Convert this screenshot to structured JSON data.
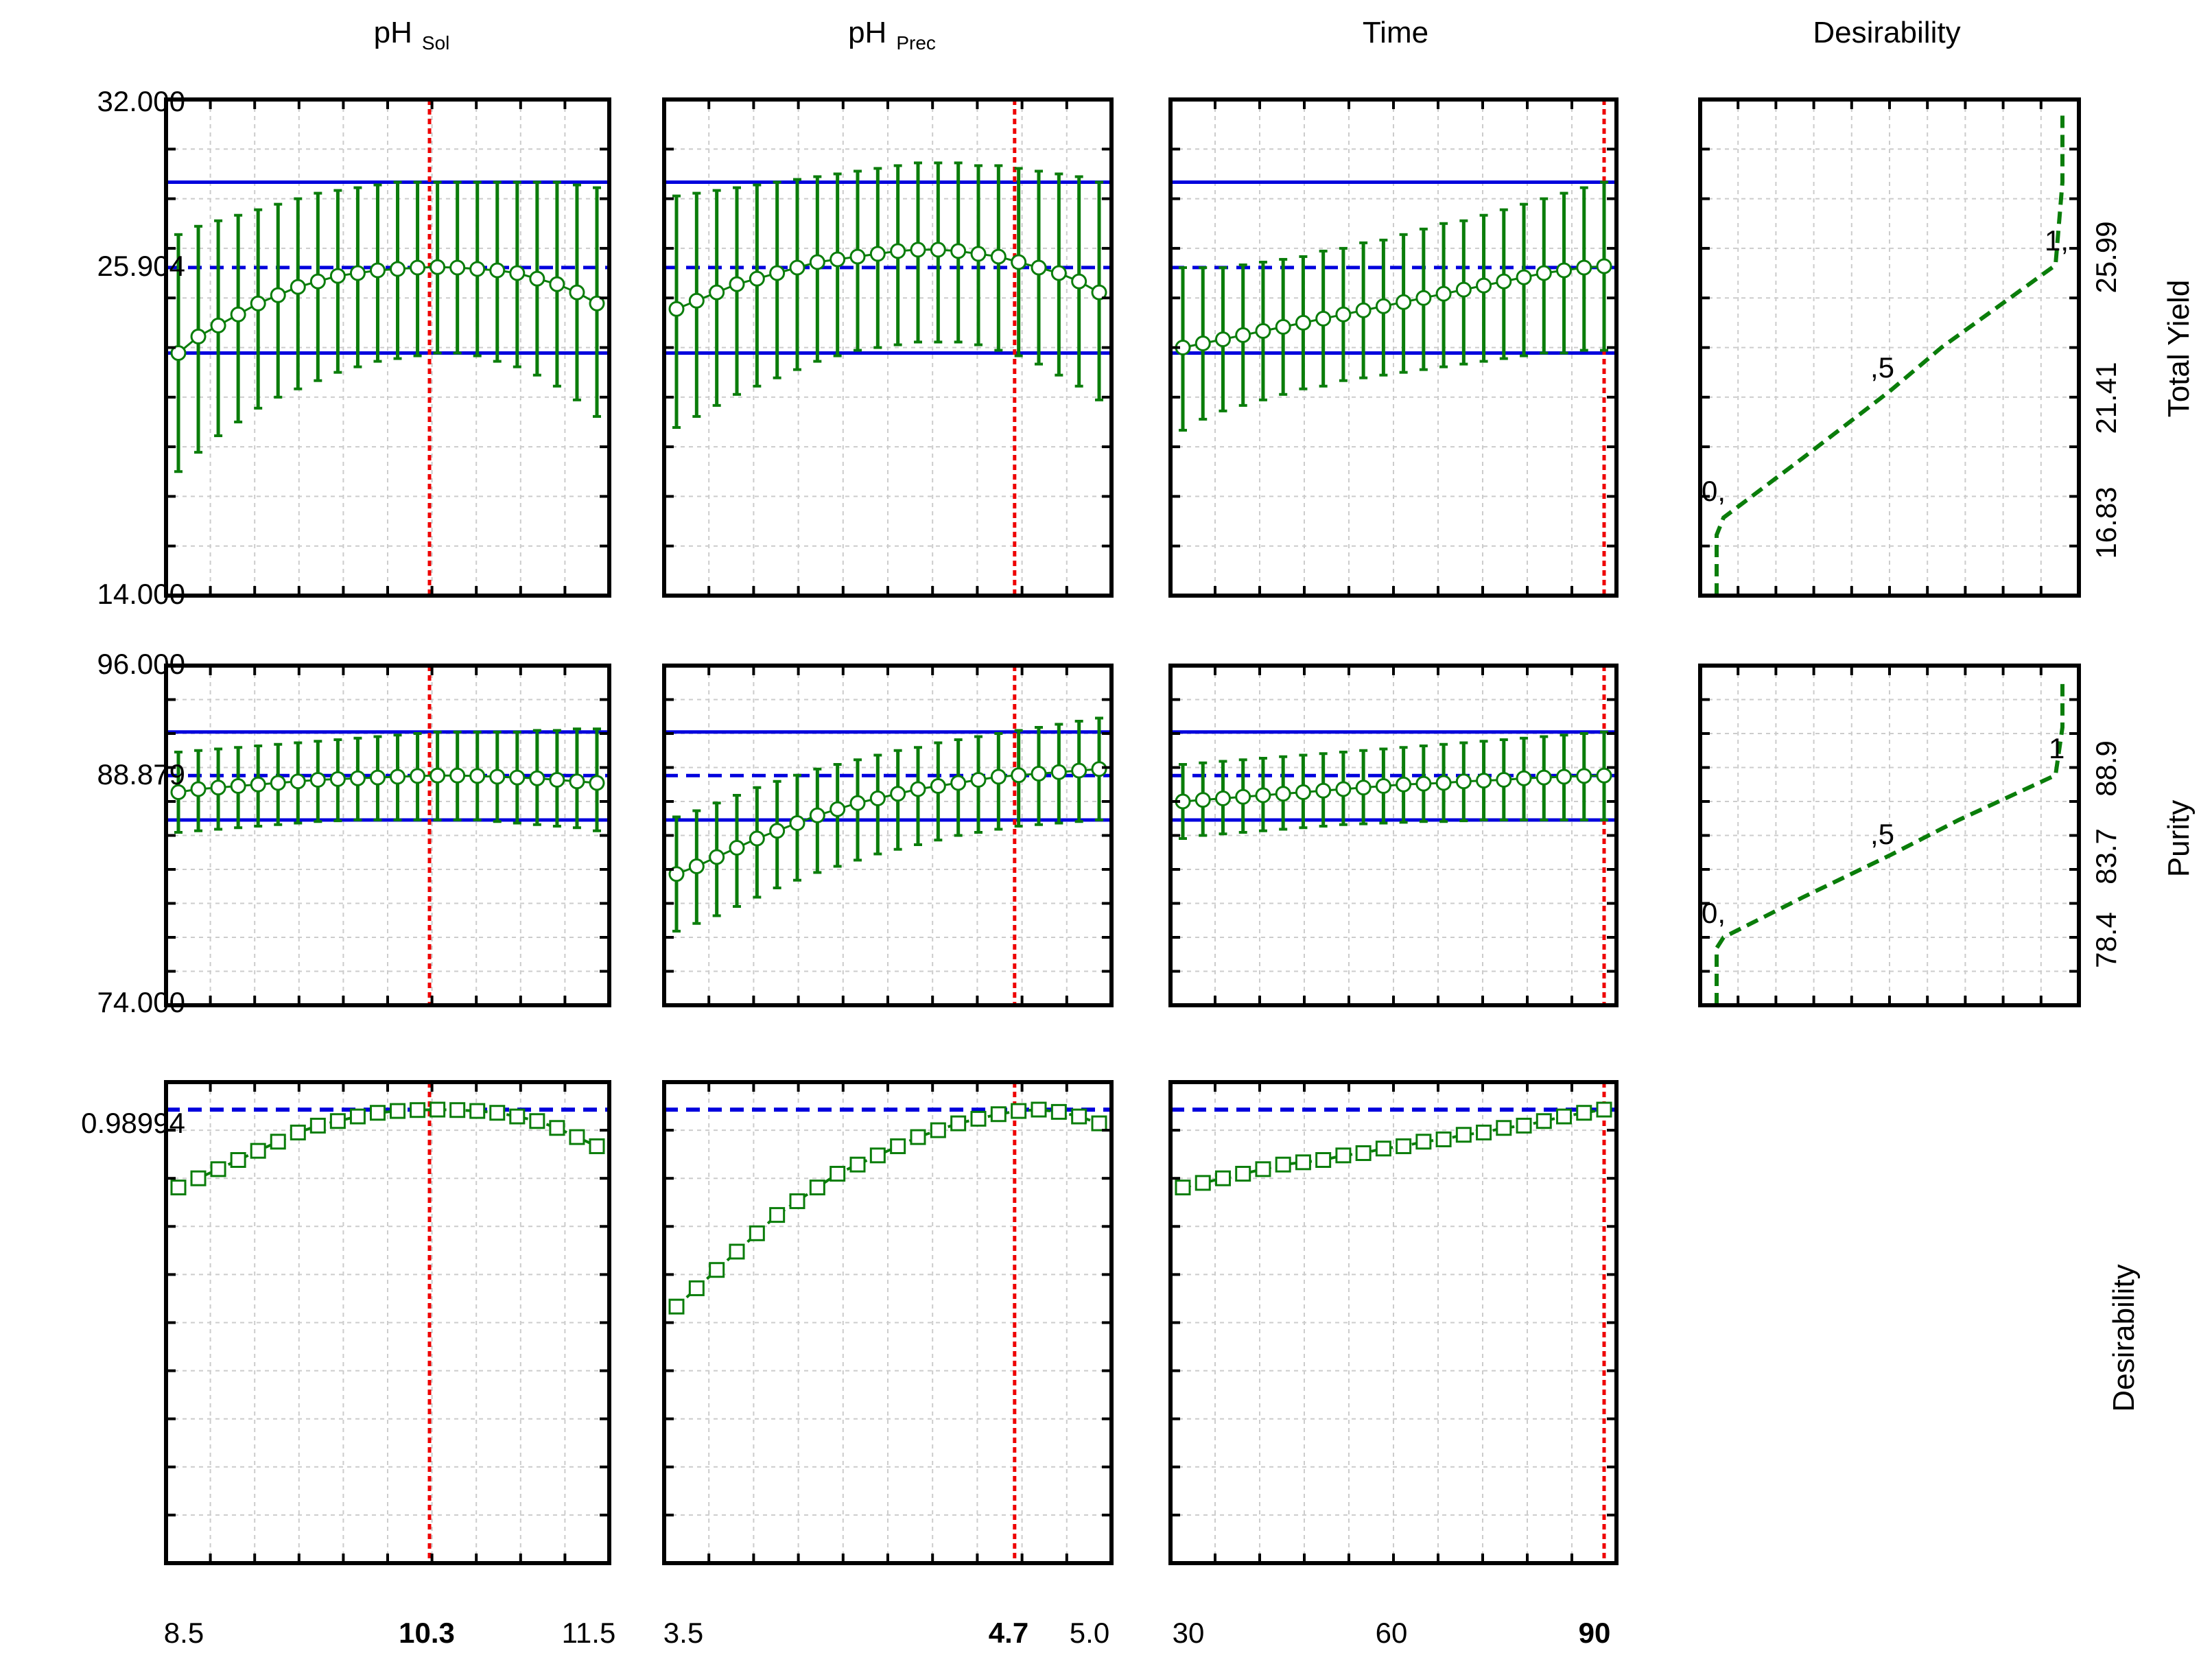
{
  "colors": {
    "curve": "#0a7d0a",
    "limit": "#0000dd",
    "current": "#ee0000",
    "grid": "#cccccc"
  },
  "columns": [
    {
      "label": "pH",
      "sub": "Sol",
      "ticks": [
        "8.5",
        "11.5"
      ],
      "current_label": "10.3"
    },
    {
      "label": "pH",
      "sub": "Prec",
      "ticks": [
        "3.5",
        "5.0"
      ],
      "current_label": "4.7"
    },
    {
      "label": "Time",
      "sub": "",
      "ticks": [
        "30",
        "60"
      ],
      "current_label": "90"
    },
    {
      "label": "Desirability",
      "sub": "",
      "ticks": [],
      "current_label": ""
    }
  ],
  "rows": [
    {
      "label": "Total Yield",
      "ylim": [
        14.0,
        32.0
      ],
      "tick_labels": [
        "32.000",
        "25.904",
        "14.000"
      ],
      "current_label": "25.904"
    },
    {
      "label": "Purity",
      "ylim": [
        74.0,
        96.0
      ],
      "tick_labels": [
        "96.000",
        "88.879",
        "74.000"
      ],
      "current_label": "88.879"
    },
    {
      "label": "Desirability",
      "tick_labels": [
        "0.98994"
      ],
      "current_label": "0.98994"
    }
  ],
  "desirability_panels": [
    {
      "row": "Total Yield",
      "axis_labels": [
        "25.99",
        "21.41",
        "16.83"
      ],
      "markers": [
        "0,",
        ",5",
        "1,"
      ]
    },
    {
      "row": "Purity",
      "axis_labels": [
        "88.9",
        "83.7",
        "78.4"
      ],
      "markers": [
        "0,",
        ",5",
        "1"
      ]
    }
  ],
  "chart_data": {
    "type": "line",
    "title": "",
    "factors": [
      {
        "name": "pH Sol",
        "x_range": [
          8.5,
          11.5
        ],
        "current": 10.3
      },
      {
        "name": "pH Prec",
        "x_range": [
          3.5,
          5.0
        ],
        "current": 4.7
      },
      {
        "name": "Time",
        "x_range": [
          30,
          90
        ],
        "current": 90
      }
    ],
    "responses": [
      {
        "name": "Total Yield",
        "ylim": [
          14.0,
          32.0
        ],
        "current": 25.904,
        "confidence_limits": [
          22.8,
          29.0
        ],
        "profiles": [
          {
            "factor": "pH Sol",
            "mean": [
              22.8,
              23.4,
              23.8,
              24.2,
              24.6,
              24.9,
              25.2,
              25.4,
              25.6,
              25.7,
              25.8,
              25.85,
              25.9,
              25.92,
              25.9,
              25.85,
              25.8,
              25.7,
              25.5,
              25.3,
              25.0,
              24.6
            ],
            "lower": [
              18.5,
              19.2,
              19.8,
              20.3,
              20.8,
              21.2,
              21.5,
              21.8,
              22.1,
              22.3,
              22.5,
              22.6,
              22.7,
              22.8,
              22.8,
              22.7,
              22.5,
              22.3,
              22.0,
              21.6,
              21.1,
              20.5
            ],
            "upper": [
              27.1,
              27.4,
              27.6,
              27.8,
              28.0,
              28.2,
              28.4,
              28.6,
              28.7,
              28.8,
              28.9,
              29.0,
              29.0,
              29.0,
              29.0,
              29.0,
              29.0,
              29.0,
              29.0,
              29.0,
              28.9,
              28.8
            ]
          },
          {
            "factor": "pH Prec",
            "mean": [
              24.4,
              24.7,
              25.0,
              25.3,
              25.5,
              25.7,
              25.9,
              26.1,
              26.2,
              26.3,
              26.4,
              26.5,
              26.55,
              26.55,
              26.5,
              26.4,
              26.3,
              26.1,
              25.9,
              25.7,
              25.4,
              25.0
            ],
            "lower": [
              20.1,
              20.5,
              20.9,
              21.3,
              21.6,
              21.9,
              22.2,
              22.5,
              22.7,
              22.9,
              23.0,
              23.1,
              23.2,
              23.2,
              23.2,
              23.1,
              22.9,
              22.7,
              22.4,
              22.0,
              21.6,
              21.1
            ],
            "upper": [
              28.5,
              28.6,
              28.7,
              28.8,
              28.9,
              29.0,
              29.1,
              29.2,
              29.3,
              29.4,
              29.5,
              29.6,
              29.7,
              29.7,
              29.7,
              29.6,
              29.6,
              29.5,
              29.4,
              29.3,
              29.2,
              29.0
            ]
          },
          {
            "factor": "Time",
            "mean": [
              23.0,
              23.15,
              23.3,
              23.45,
              23.6,
              23.75,
              23.9,
              24.05,
              24.2,
              24.35,
              24.5,
              24.65,
              24.8,
              24.95,
              25.1,
              25.25,
              25.4,
              25.55,
              25.7,
              25.8,
              25.9,
              25.95
            ],
            "lower": [
              20.0,
              20.4,
              20.7,
              20.9,
              21.1,
              21.3,
              21.5,
              21.6,
              21.8,
              21.9,
              22.0,
              22.1,
              22.2,
              22.3,
              22.4,
              22.5,
              22.6,
              22.7,
              22.8,
              22.8,
              22.9,
              22.9
            ],
            "upper": [
              25.9,
              25.9,
              25.9,
              26.0,
              26.1,
              26.2,
              26.3,
              26.5,
              26.6,
              26.8,
              26.9,
              27.1,
              27.3,
              27.5,
              27.6,
              27.8,
              28.0,
              28.2,
              28.4,
              28.6,
              28.8,
              29.0
            ]
          }
        ],
        "desirability_curve": {
          "y": [
            14.0,
            16.2,
            16.83,
            19.0,
            21.41,
            23.0,
            25.99,
            29.0,
            31.6
          ],
          "d": [
            0,
            0,
            0.02,
            0.25,
            0.5,
            0.65,
            0.98,
            1.0,
            1.0
          ]
        }
      },
      {
        "name": "Purity",
        "ylim": [
          74.0,
          96.0
        ],
        "current": 88.879,
        "confidence_limits": [
          86.0,
          91.7
        ],
        "profiles": [
          {
            "factor": "pH Sol",
            "mean": [
              87.8,
              88.0,
              88.1,
              88.2,
              88.3,
              88.4,
              88.5,
              88.6,
              88.65,
              88.7,
              88.75,
              88.8,
              88.85,
              88.88,
              88.88,
              88.85,
              88.8,
              88.75,
              88.7,
              88.6,
              88.5,
              88.4
            ],
            "lower": [
              85.2,
              85.3,
              85.4,
              85.5,
              85.6,
              85.7,
              85.8,
              85.9,
              85.95,
              86.0,
              86.0,
              86.0,
              86.0,
              86.0,
              86.0,
              86.0,
              85.9,
              85.8,
              85.7,
              85.6,
              85.5,
              85.3
            ],
            "upper": [
              90.4,
              90.5,
              90.6,
              90.7,
              90.8,
              90.9,
              91.0,
              91.1,
              91.2,
              91.3,
              91.4,
              91.5,
              91.6,
              91.7,
              91.7,
              91.7,
              91.7,
              91.7,
              91.8,
              91.8,
              91.9,
              91.9
            ]
          },
          {
            "factor": "pH Prec",
            "mean": [
              82.5,
              83.0,
              83.6,
              84.2,
              84.8,
              85.3,
              85.8,
              86.3,
              86.7,
              87.1,
              87.4,
              87.7,
              88.0,
              88.2,
              88.4,
              88.6,
              88.8,
              88.9,
              89.0,
              89.1,
              89.2,
              89.3
            ],
            "lower": [
              78.8,
              79.3,
              79.8,
              80.4,
              81.0,
              81.6,
              82.1,
              82.6,
              83.0,
              83.4,
              83.8,
              84.1,
              84.4,
              84.7,
              85.0,
              85.2,
              85.4,
              85.6,
              85.7,
              85.8,
              85.9,
              86.0
            ],
            "upper": [
              86.2,
              86.6,
              87.1,
              87.6,
              88.1,
              88.5,
              88.9,
              89.3,
              89.6,
              89.9,
              90.2,
              90.5,
              90.7,
              91.0,
              91.2,
              91.4,
              91.6,
              91.8,
              92.0,
              92.2,
              92.4,
              92.6
            ]
          },
          {
            "factor": "Time",
            "mean": [
              87.2,
              87.3,
              87.4,
              87.5,
              87.6,
              87.7,
              87.8,
              87.9,
              88.0,
              88.1,
              88.2,
              88.3,
              88.35,
              88.4,
              88.5,
              88.55,
              88.6,
              88.7,
              88.75,
              88.8,
              88.85,
              88.88
            ],
            "lower": [
              84.8,
              85.0,
              85.1,
              85.2,
              85.3,
              85.4,
              85.5,
              85.6,
              85.7,
              85.75,
              85.8,
              85.85,
              85.9,
              85.9,
              85.95,
              86.0,
              86.0,
              86.0,
              86.0,
              86.0,
              86.0,
              86.0
            ],
            "upper": [
              89.6,
              89.7,
              89.8,
              89.9,
              90.0,
              90.1,
              90.2,
              90.3,
              90.4,
              90.5,
              90.6,
              90.7,
              90.8,
              90.9,
              91.0,
              91.1,
              91.2,
              91.3,
              91.4,
              91.5,
              91.6,
              91.7
            ]
          }
        ],
        "desirability_curve": {
          "y": [
            74.0,
            77.7,
            78.4,
            81.0,
            83.7,
            86.0,
            88.9,
            92.0,
            95.2
          ],
          "d": [
            0,
            0,
            0.02,
            0.25,
            0.5,
            0.7,
            0.98,
            1.0,
            1.0
          ]
        }
      },
      {
        "name": "Desirability",
        "ylim": [
          0,
          1.05
        ],
        "current": 0.98994,
        "profiles": [
          {
            "factor": "pH Sol",
            "values": [
              0.82,
              0.84,
              0.86,
              0.88,
              0.9,
              0.92,
              0.94,
              0.955,
              0.965,
              0.975,
              0.983,
              0.987,
              0.989,
              0.99,
              0.989,
              0.987,
              0.983,
              0.975,
              0.965,
              0.95,
              0.93,
              0.91
            ]
          },
          {
            "factor": "pH Prec",
            "values": [
              0.56,
              0.6,
              0.64,
              0.68,
              0.72,
              0.76,
              0.79,
              0.82,
              0.85,
              0.87,
              0.89,
              0.91,
              0.93,
              0.945,
              0.96,
              0.97,
              0.98,
              0.987,
              0.99,
              0.985,
              0.975,
              0.96
            ]
          },
          {
            "factor": "Time",
            "values": [
              0.82,
              0.83,
              0.84,
              0.85,
              0.86,
              0.87,
              0.875,
              0.88,
              0.89,
              0.895,
              0.905,
              0.91,
              0.92,
              0.925,
              0.935,
              0.94,
              0.95,
              0.955,
              0.965,
              0.975,
              0.983,
              0.99
            ]
          }
        ]
      }
    ]
  }
}
